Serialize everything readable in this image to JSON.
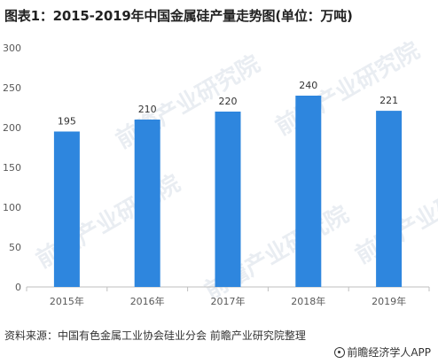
{
  "title": "图表1：2015-2019年中国金属硅产量走势图(单位：万吨)",
  "source": "资料来源：中国有色金属工业协会硅业分会 前瞻产业研究院整理",
  "footer_brand": "前瞻经济学人APP",
  "watermark": "前瞻产业研究院",
  "colors": {
    "bar": "#2e86de",
    "axis": "#bfbfbf",
    "text": "#595959"
  },
  "chart_data": {
    "type": "bar",
    "categories": [
      "2015年",
      "2016年",
      "2017年",
      "2018年",
      "2019年"
    ],
    "values": [
      195,
      210,
      220,
      240,
      221
    ],
    "ylim": [
      0,
      300
    ],
    "yticks": [
      0,
      50,
      100,
      150,
      200,
      250,
      300
    ],
    "grid": false,
    "data_labels": true
  }
}
